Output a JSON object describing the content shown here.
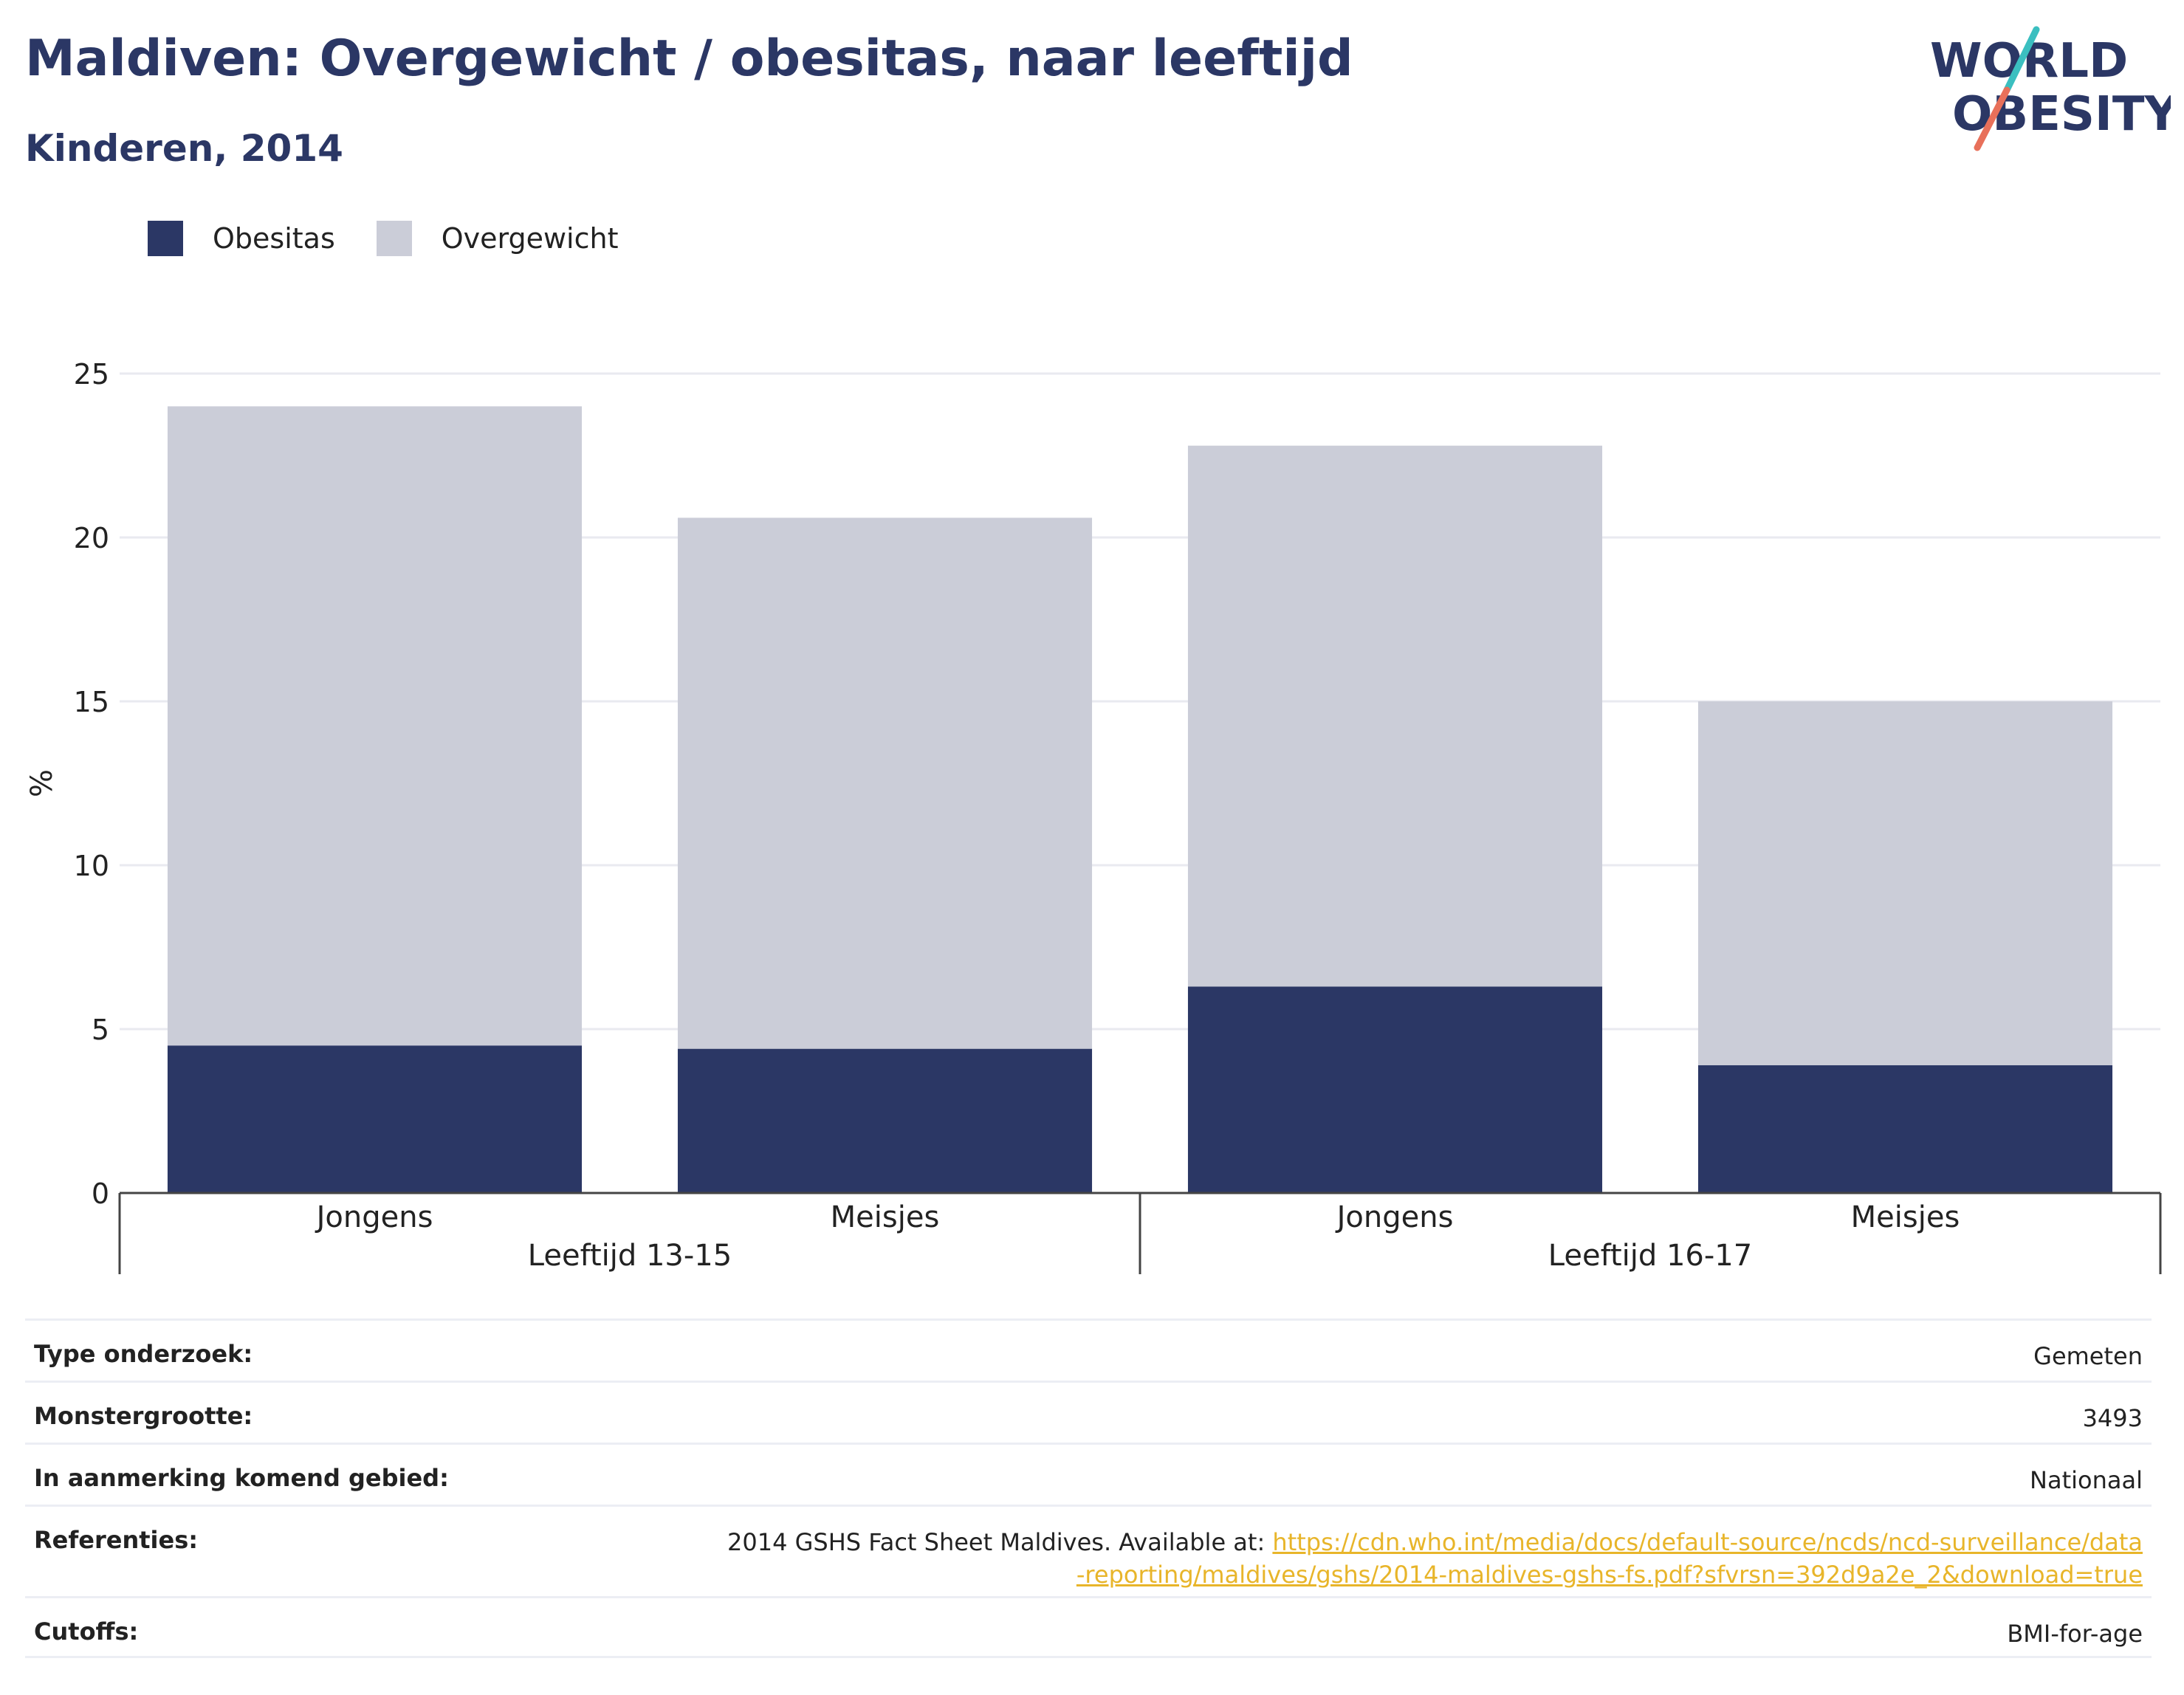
{
  "header": {
    "title": "Maldiven: Overgewicht / obesitas, naar leeftijd",
    "subtitle": "Kinderen, 2014"
  },
  "logo": {
    "line1": "WORLD",
    "line2": "OBESITY"
  },
  "colors": {
    "obesitas": "#2b3765",
    "overgewicht": "#cbcdd8",
    "text": "#2b3765",
    "link": "#e8b52a",
    "logo_teal": "#3bbfc0",
    "logo_coral": "#e8705a"
  },
  "chart_data": {
    "type": "bar",
    "stacked": true,
    "ylabel": "%",
    "ylim": [
      0,
      25
    ],
    "yticks": [
      0,
      5,
      10,
      15,
      20,
      25
    ],
    "grid": true,
    "legend_position": "top-left",
    "groups": [
      {
        "label": "Leeftijd 13-15",
        "categories": [
          "Jongens",
          "Meisjes"
        ]
      },
      {
        "label": "Leeftijd 16-17",
        "categories": [
          "Jongens",
          "Meisjes"
        ]
      }
    ],
    "series": [
      {
        "name": "Obesitas",
        "values": [
          4.5,
          4.4,
          6.3,
          3.9
        ]
      },
      {
        "name": "Overgewicht",
        "values": [
          19.5,
          16.2,
          16.5,
          11.1
        ]
      }
    ]
  },
  "info": [
    {
      "label": "Type onderzoek:",
      "value": "Gemeten"
    },
    {
      "label": "Monstergrootte:",
      "value": "3493"
    },
    {
      "label": "In aanmerking komend gebied:",
      "value": "Nationaal"
    },
    {
      "label": "Referenties:",
      "value": "2014 GSHS Fact Sheet Maldives. Available at: ",
      "link": "https://cdn.who.int/media/docs/default-source/ncds/ncd-surveillance/data-reporting/maldives/gshs/2014-maldives-gshs-fs.pdf?sfvrsn=392d9a2e_2&download=true"
    },
    {
      "label": "Cutoffs:",
      "value": "BMI-for-age"
    }
  ]
}
